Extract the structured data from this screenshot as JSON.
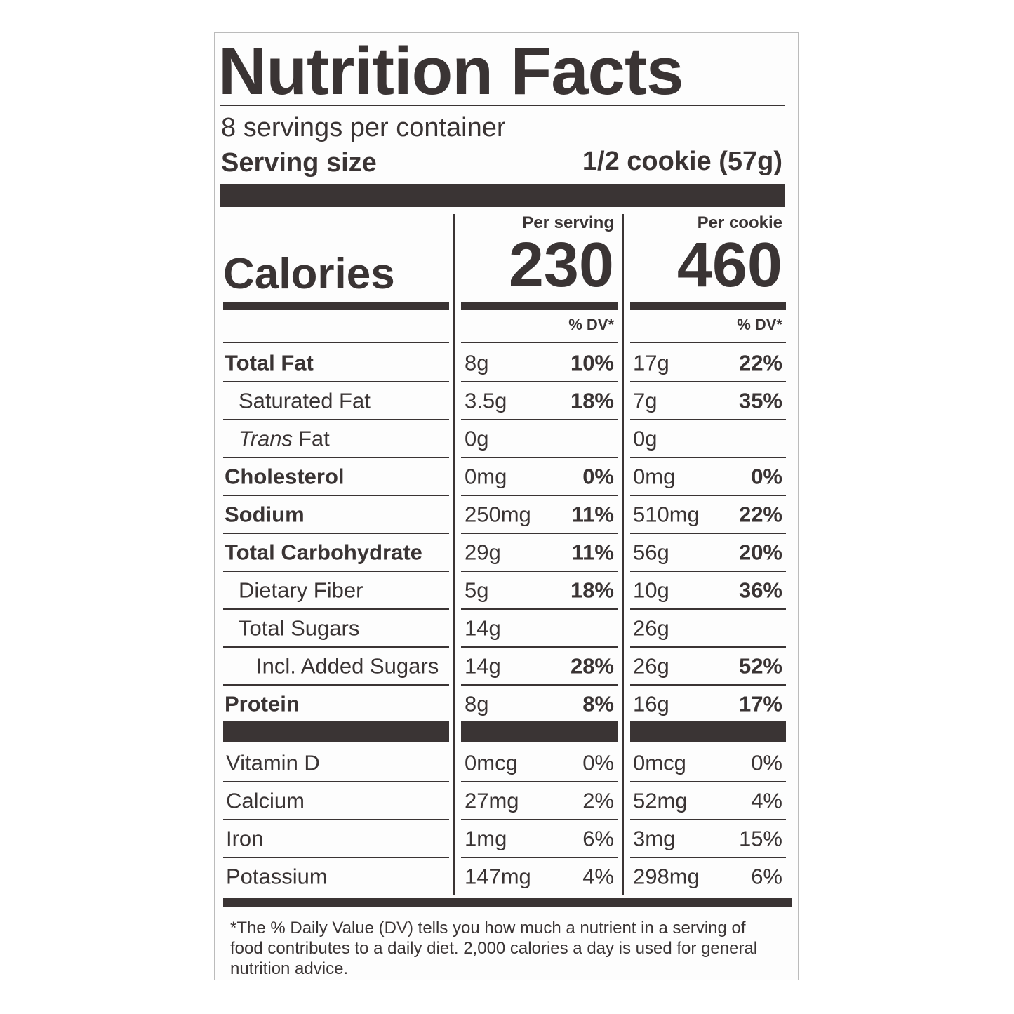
{
  "title": "Nutrition Facts",
  "servings": "8 servings per container",
  "serving_size": {
    "label": "Serving size",
    "value": "1/2 cookie (57g)"
  },
  "calories": {
    "label": "Calories",
    "columns": [
      {
        "header": "Per serving",
        "value": "230",
        "dv_header": "% DV*"
      },
      {
        "header": "Per cookie",
        "value": "460",
        "dv_header": "% DV*"
      }
    ]
  },
  "nutrients": [
    {
      "name": "Total Fat",
      "values": [
        [
          "8g",
          "10%"
        ],
        [
          "17g",
          "22%"
        ]
      ],
      "sub": [
        {
          "name": "Saturated Fat",
          "values": [
            [
              "3.5g",
              "18%"
            ],
            [
              "7g",
              "35%"
            ]
          ]
        },
        {
          "name_italic": "Trans",
          "name": "Fat",
          "values": [
            [
              "0g"
            ],
            [
              "0g"
            ]
          ]
        }
      ]
    },
    {
      "name": "Cholesterol",
      "values": [
        [
          "0mg",
          "0%"
        ],
        [
          "0mg",
          "0%"
        ]
      ]
    },
    {
      "name": "Sodium",
      "values": [
        [
          "250mg",
          "11%"
        ],
        [
          "510mg",
          "22%"
        ]
      ]
    },
    {
      "name": "Total Carbohydrate",
      "values": [
        [
          "29g",
          "11%"
        ],
        [
          "56g",
          "20%"
        ]
      ],
      "sub": [
        {
          "name": "Dietary Fiber",
          "values": [
            [
              "5g",
              "18%"
            ],
            [
              "10g",
              "36%"
            ]
          ]
        },
        {
          "name": "Total Sugars",
          "values": [
            [
              "14g"
            ],
            [
              "26g"
            ]
          ],
          "sub": [
            {
              "name": "Incl. Added Sugars",
              "values": [
                [
                  "14g",
                  "28%"
                ],
                [
                  "26g",
                  "52%"
                ]
              ]
            }
          ]
        }
      ]
    },
    {
      "name": "Protein",
      "values": [
        [
          "8g",
          "8%"
        ],
        [
          "16g",
          "17%"
        ]
      ]
    }
  ],
  "vitamins": [
    {
      "name": "Vitamin D",
      "values": [
        [
          "0mcg",
          "0%"
        ],
        [
          "0mcg",
          "0%"
        ]
      ]
    },
    {
      "name": "Calcium",
      "values": [
        [
          "27mg",
          "2%"
        ],
        [
          "52mg",
          "4%"
        ]
      ]
    },
    {
      "name": "Iron",
      "values": [
        [
          "1mg",
          "6%"
        ],
        [
          "3mg",
          "15%"
        ]
      ]
    },
    {
      "name": "Potassium",
      "values": [
        [
          "147mg",
          "4%"
        ],
        [
          "298mg",
          "6%"
        ]
      ]
    }
  ],
  "footnote": "*The % Daily Value (DV) tells you how much a nutrient in a serving of food contributes to a daily diet. 2,000 calories a day is used for general nutrition advice."
}
